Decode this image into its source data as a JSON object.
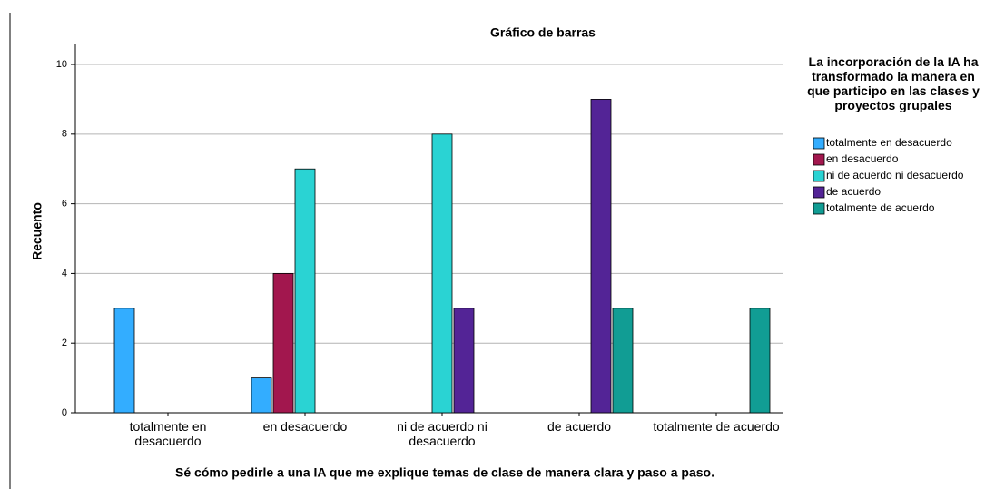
{
  "chart_data": {
    "type": "bar",
    "title": "Gráfico de barras",
    "x_label": "Sé cómo pedirle a una IA que me explique temas de clase de manera clara y paso a paso.",
    "y_label": "Recuento",
    "legend_title": "La incorporación de la IA ha transformado la manera en que participo en las clases y proyectos grupales",
    "legend_position": "right",
    "grid": true,
    "categories": [
      "totalmente en desacuerdo",
      "en desacuerdo",
      "ni de acuerdo ni desacuerdo",
      "de acuerdo",
      "totalmente de acuerdo"
    ],
    "series": [
      {
        "name": "totalmente en desacuerdo",
        "color": "#33adff",
        "values": [
          3,
          1,
          null,
          null,
          null
        ]
      },
      {
        "name": "en desacuerdo",
        "color": "#a2174e",
        "values": [
          null,
          4,
          null,
          null,
          null
        ]
      },
      {
        "name": "ni de acuerdo ni desacuerdo",
        "color": "#2ad3d3",
        "values": [
          null,
          7,
          8,
          null,
          null
        ]
      },
      {
        "name": "de acuerdo",
        "color": "#532496",
        "values": [
          null,
          null,
          3,
          9,
          null
        ]
      },
      {
        "name": "totalmente de acuerdo",
        "color": "#119d94",
        "values": [
          null,
          null,
          null,
          3,
          3
        ]
      }
    ],
    "ylim": [
      0,
      10.6
    ],
    "yticks": [
      0,
      2,
      4,
      6,
      8,
      10
    ]
  }
}
